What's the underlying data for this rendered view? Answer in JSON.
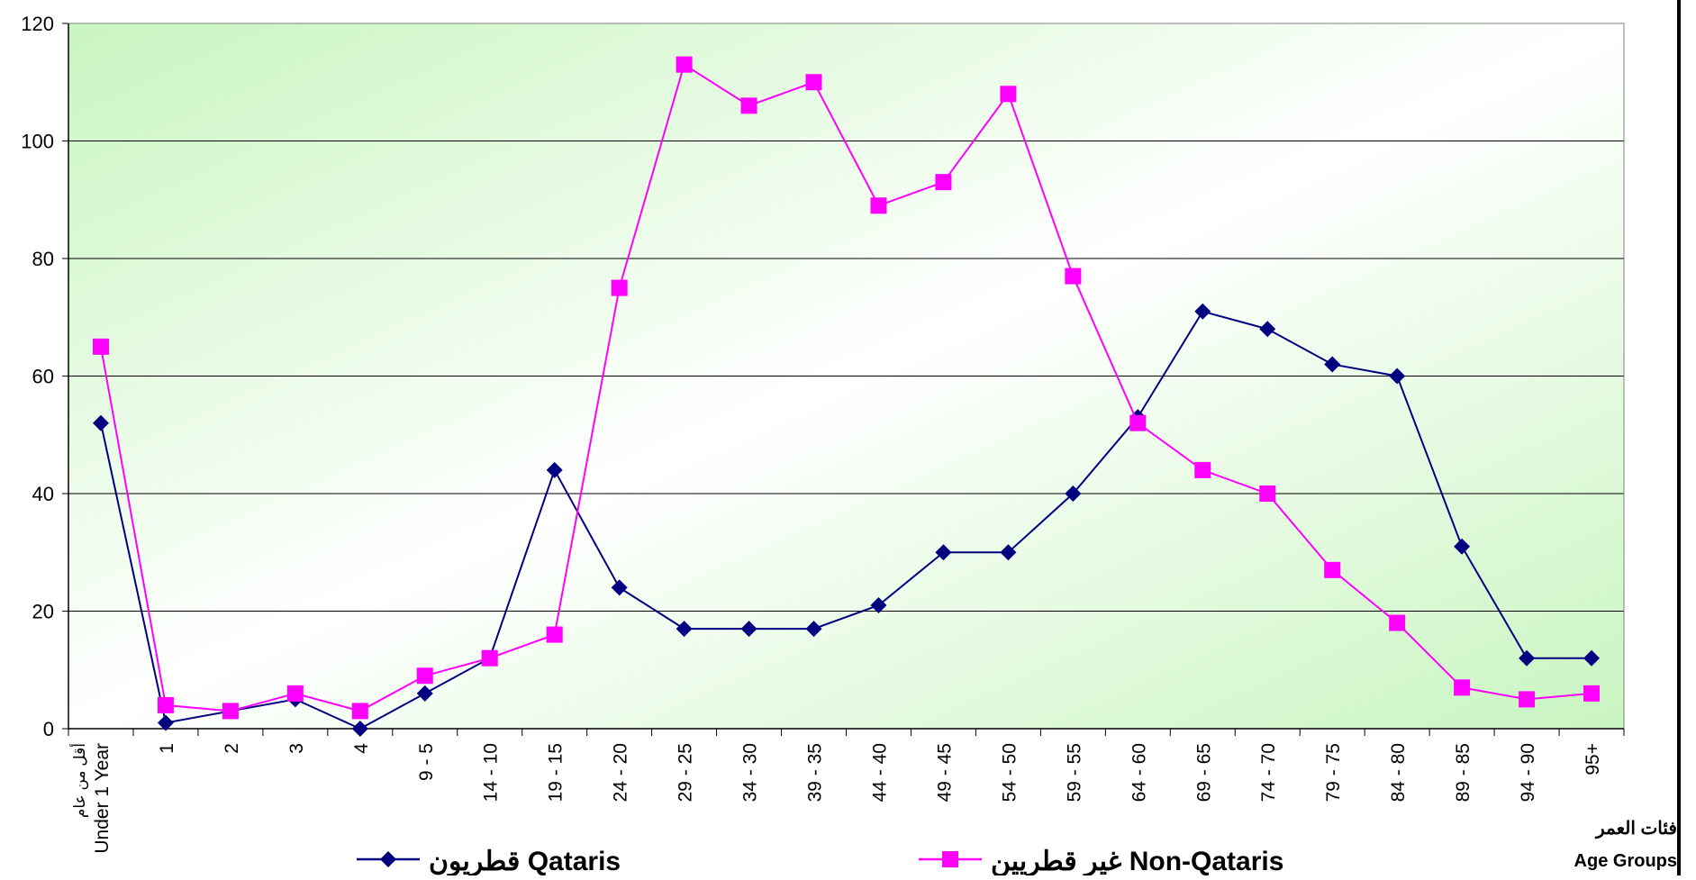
{
  "chart_data": {
    "type": "line",
    "title": "",
    "xlabel": "",
    "ylabel": "",
    "x_axis_title": {
      "arabic": "فئات العمر",
      "english": "Age Groups"
    },
    "ylim": [
      0,
      120
    ],
    "y_ticks": [
      0,
      20,
      40,
      60,
      80,
      100,
      120
    ],
    "grid": true,
    "legend_position": "bottom",
    "categories": [
      [
        "أقل من عام",
        "Under 1 Year"
      ],
      [
        "1"
      ],
      [
        "2"
      ],
      [
        "3"
      ],
      [
        "4"
      ],
      [
        "9 - 5"
      ],
      [
        "14 - 10"
      ],
      [
        "19 - 15"
      ],
      [
        "24 - 20"
      ],
      [
        "29 - 25"
      ],
      [
        "34 - 30"
      ],
      [
        "39 - 35"
      ],
      [
        "44 - 40"
      ],
      [
        "49 - 45"
      ],
      [
        "54 - 50"
      ],
      [
        "59 - 55"
      ],
      [
        "64 - 60"
      ],
      [
        "69 - 65"
      ],
      [
        "74 - 70"
      ],
      [
        "79 - 75"
      ],
      [
        "84 - 80"
      ],
      [
        "89 - 85"
      ],
      [
        "94 - 90"
      ],
      [
        "95+"
      ]
    ],
    "series": [
      {
        "name": "قطريون Qataris",
        "color": "#000080",
        "marker": "diamond",
        "values": [
          52,
          1,
          3,
          5,
          0,
          6,
          12,
          44,
          24,
          17,
          17,
          17,
          21,
          30,
          30,
          40,
          53,
          71,
          68,
          62,
          60,
          31,
          12,
          12
        ]
      },
      {
        "name": "غير قطريين Non-Qataris",
        "color": "#FF00FF",
        "marker": "square",
        "values": [
          65,
          4,
          3,
          6,
          3,
          9,
          12,
          16,
          75,
          113,
          106,
          110,
          89,
          93,
          108,
          77,
          52,
          44,
          40,
          27,
          18,
          7,
          5,
          6
        ]
      }
    ],
    "colors": {
      "plot_gradient_edge": "#c8f5c0",
      "plot_gradient_center": "#ffffff",
      "grid": "#000000"
    }
  }
}
